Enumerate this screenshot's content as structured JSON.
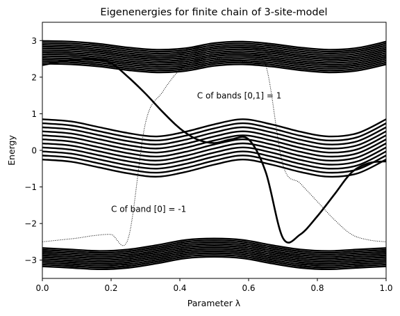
{
  "chart_data": {
    "type": "line",
    "title": "Eigenenergies for finite chain of 3-site-model",
    "xlabel": "Parameter λ",
    "ylabel": "Energy",
    "xlim": [
      0.0,
      1.0
    ],
    "ylim": [
      -3.5,
      3.5
    ],
    "xticks": [
      0.0,
      0.2,
      0.4,
      0.6,
      0.8,
      1.0
    ],
    "xtick_labels": [
      "0.0",
      "0.2",
      "0.4",
      "0.6",
      "0.8",
      "1.0"
    ],
    "yticks": [
      -3,
      -2,
      -1,
      0,
      1,
      2,
      3
    ],
    "ytick_labels": [
      "−3",
      "−2",
      "−1",
      "0",
      "1",
      "2",
      "3"
    ],
    "grid": false,
    "line_color": "#000000",
    "bands": [
      {
        "center": [
          2.68,
          2.66,
          2.6,
          2.5,
          2.44,
          2.48,
          2.62,
          2.66,
          2.6,
          2.5,
          2.44,
          2.49,
          2.66
        ],
        "half_width": 0.31,
        "lines": 13
      },
      {
        "center": [
          0.3,
          0.24,
          0.08,
          -0.08,
          -0.17,
          -0.04,
          0.16,
          0.3,
          0.16,
          -0.04,
          -0.17,
          -0.08,
          0.3
        ],
        "half_width": 0.55,
        "lines": 11
      },
      {
        "center": [
          -2.92,
          -2.96,
          -3.0,
          -2.96,
          -2.84,
          -2.7,
          -2.66,
          -2.7,
          -2.84,
          -2.96,
          -3.0,
          -2.96,
          -2.92
        ],
        "half_width": 0.25,
        "lines": 11
      }
    ],
    "band_x": [
      0.0,
      0.0833,
      0.1667,
      0.25,
      0.3333,
      0.4167,
      0.5,
      0.5833,
      0.6667,
      0.75,
      0.8333,
      0.9167,
      1.0
    ],
    "edge_states": [
      {
        "style": "bold",
        "x": [
          0.0,
          0.05,
          0.1,
          0.15,
          0.2,
          0.25,
          0.3,
          0.35,
          0.4,
          0.45,
          0.5,
          0.55,
          0.6,
          0.65,
          0.7,
          0.75,
          0.8,
          0.85,
          0.9,
          0.95,
          1.0
        ],
        "y": [
          2.33,
          2.42,
          2.48,
          2.49,
          2.38,
          2.0,
          1.55,
          1.05,
          0.6,
          0.3,
          0.2,
          0.3,
          0.3,
          -0.6,
          -2.4,
          -2.3,
          -1.8,
          -1.2,
          -0.6,
          -0.35,
          -0.3
        ]
      },
      {
        "style": "dotted",
        "x": [
          0.0,
          0.05,
          0.1,
          0.15,
          0.2,
          0.25,
          0.3,
          0.35,
          0.4,
          0.45,
          0.5,
          0.55,
          0.6,
          0.65,
          0.7,
          0.75,
          0.8,
          0.85,
          0.9,
          0.95,
          1.0
        ],
        "y": [
          -2.5,
          -2.45,
          -2.4,
          -2.33,
          -2.3,
          -2.4,
          0.75,
          1.6,
          2.2,
          2.45,
          2.5,
          2.48,
          2.4,
          2.32,
          -0.4,
          -0.9,
          -1.4,
          -1.9,
          -2.3,
          -2.45,
          -2.5
        ]
      }
    ],
    "annotations": [
      {
        "text": "C of bands [0,1] =   1",
        "x": 0.45,
        "y": 1.5
      },
      {
        "text": "C of band [0] =  -1",
        "x": 0.2,
        "y": -1.6
      }
    ]
  }
}
